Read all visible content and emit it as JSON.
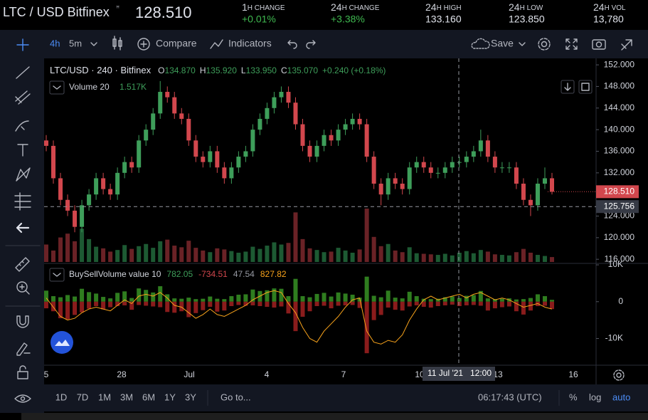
{
  "header": {
    "pair": "LTC / USD Bitfinex",
    "price": "128.510",
    "stats": [
      {
        "num": "1",
        "label": "H CHANGE",
        "value": "+0.01%"
      },
      {
        "num": "24",
        "label": "H CHANGE",
        "value": "+3.38%"
      },
      {
        "num": "24",
        "label": "H HIGH",
        "value": "133.160"
      },
      {
        "num": "24",
        "label": "H LOW",
        "value": "123.850"
      },
      {
        "num": "24",
        "label": "H VOL",
        "value": "13,780"
      }
    ]
  },
  "toolbar": {
    "interval": "4h",
    "interval2": "5m",
    "compare": "Compare",
    "indicators": "Indicators",
    "save": "Save"
  },
  "chart_data": {
    "type": "candlestick",
    "legend": {
      "symbol": "LTC/USD · 240 · Bitfinex",
      "ohlc": [
        {
          "key": "O",
          "value": "134.870"
        },
        {
          "key": "H",
          "value": "135.920"
        },
        {
          "key": "L",
          "value": "133.950"
        },
        {
          "key": "C",
          "value": "135.070"
        }
      ],
      "change": "+0.240 (+0.18%)"
    },
    "up_color": "#3e9e5a",
    "down_color": "#d2474d",
    "candles": [
      [
        138,
        139,
        136,
        137
      ],
      [
        137,
        138,
        130,
        131
      ],
      [
        131,
        132,
        126,
        127
      ],
      [
        127,
        128,
        124,
        125
      ],
      [
        125,
        126,
        121,
        122
      ],
      [
        122,
        127,
        121,
        126
      ],
      [
        126,
        129,
        125,
        128
      ],
      [
        128,
        132,
        127,
        131
      ],
      [
        131,
        132,
        128,
        129
      ],
      [
        129,
        130,
        127,
        128
      ],
      [
        128,
        133,
        127,
        132
      ],
      [
        132,
        135,
        131,
        134
      ],
      [
        134,
        135,
        132,
        133
      ],
      [
        133,
        139,
        132,
        138
      ],
      [
        138,
        141,
        137,
        140
      ],
      [
        140,
        144,
        139,
        143
      ],
      [
        143,
        149,
        142,
        147
      ],
      [
        147,
        148,
        145,
        146
      ],
      [
        146,
        147,
        142,
        143
      ],
      [
        143,
        144,
        141,
        142
      ],
      [
        142,
        143,
        137,
        138
      ],
      [
        138,
        139,
        134,
        135
      ],
      [
        135,
        136,
        133,
        134
      ],
      [
        134,
        137,
        133,
        136
      ],
      [
        136,
        137,
        132,
        133
      ],
      [
        133,
        134,
        130,
        131
      ],
      [
        131,
        134,
        130,
        133
      ],
      [
        133,
        136,
        132,
        135
      ],
      [
        135,
        137,
        134,
        136
      ],
      [
        136,
        141,
        135,
        140
      ],
      [
        140,
        143,
        139,
        142
      ],
      [
        142,
        145,
        141,
        144
      ],
      [
        144,
        147,
        143,
        146
      ],
      [
        146,
        148,
        145,
        147
      ],
      [
        147,
        148,
        144,
        145
      ],
      [
        145,
        146,
        140,
        141
      ],
      [
        141,
        142,
        136,
        137
      ],
      [
        137,
        138,
        134,
        135
      ],
      [
        135,
        138,
        134,
        137
      ],
      [
        137,
        140,
        136,
        139
      ],
      [
        139,
        140,
        137,
        138
      ],
      [
        138,
        141,
        137,
        140
      ],
      [
        140,
        142,
        139,
        141
      ],
      [
        141,
        143,
        140,
        142
      ],
      [
        142,
        143,
        140,
        141
      ],
      [
        141,
        142,
        134,
        135
      ],
      [
        135,
        136,
        129,
        130
      ],
      [
        130,
        131,
        126,
        128
      ],
      [
        128,
        132,
        127,
        131
      ],
      [
        131,
        132,
        129,
        130
      ],
      [
        130,
        131,
        128,
        129
      ],
      [
        129,
        134,
        128,
        133
      ],
      [
        133,
        135,
        132,
        134
      ],
      [
        134,
        135,
        132,
        133
      ],
      [
        133,
        134,
        131,
        132
      ],
      [
        132,
        133,
        131,
        132
      ],
      [
        132,
        134,
        131,
        133
      ],
      [
        133,
        135,
        132,
        134
      ],
      [
        134,
        135,
        133,
        134
      ],
      [
        134,
        136,
        133,
        135
      ],
      [
        135,
        137,
        134,
        136
      ],
      [
        136,
        140,
        135,
        138
      ],
      [
        138,
        139,
        134,
        135
      ],
      [
        135,
        136,
        132,
        133
      ],
      [
        133,
        134,
        132,
        133
      ],
      [
        133,
        134,
        132,
        133
      ],
      [
        133,
        134,
        129,
        130
      ],
      [
        130,
        131,
        126,
        127
      ],
      [
        127,
        128,
        124,
        126
      ],
      [
        126,
        131,
        125,
        130
      ],
      [
        130,
        133,
        129,
        131
      ],
      [
        131,
        132,
        128,
        128.51
      ]
    ],
    "ylim": [
      115.5,
      153.2
    ],
    "yticks": [
      {
        "value": 116,
        "label": "116.000"
      },
      {
        "value": 120,
        "label": "120.000"
      },
      {
        "value": 124,
        "label": "124.000"
      },
      {
        "value": 128,
        "label": "128.000"
      },
      {
        "value": 132,
        "label": "132.000"
      },
      {
        "value": 136,
        "label": "136.000"
      },
      {
        "value": 140,
        "label": "140.000"
      },
      {
        "value": 144,
        "label": "144.000"
      },
      {
        "value": 148,
        "label": "148.000"
      },
      {
        "value": 152,
        "label": "152.000"
      }
    ],
    "last_price": {
      "value": 128.51,
      "label": "128.510"
    },
    "crosshair": {
      "value": 125.756,
      "label": "125.756",
      "date": "11 Jul '21",
      "time": "12:00"
    },
    "xticks": [
      "5",
      "28",
      "Jul",
      "4",
      "7",
      "10",
      "13",
      "16"
    ],
    "volume": {
      "name": "Volume 20",
      "value": "1.517K",
      "values": [
        3200,
        2100,
        4500,
        5200,
        3800,
        6100,
        4200,
        2800,
        2500,
        1900,
        2200,
        3100,
        2400,
        2900,
        3300,
        2600,
        3800,
        4100,
        3000,
        2700,
        3900,
        2600,
        2100,
        1800,
        2500,
        2300,
        2000,
        1700,
        1900,
        2800,
        2400,
        3000,
        3600,
        3200,
        3500,
        9100,
        4200,
        2500,
        2200,
        1800,
        1900,
        2600,
        2100,
        1700,
        2300,
        9800,
        4600,
        2900,
        3300,
        2100,
        1800,
        2700,
        1600,
        1500,
        1400,
        1300,
        1500,
        1200,
        1700,
        2000,
        1600,
        2200,
        1900,
        1400,
        1300,
        1200,
        1800,
        2400,
        1700,
        1300,
        1100,
        900
      ]
    },
    "indicator": {
      "name": "BuySellVolume value 10",
      "readings": [
        {
          "value": "782.05",
          "color": "#3e9e5a"
        },
        {
          "value": "-734.51",
          "color": "#d2474d"
        },
        {
          "value": "47.54",
          "color": "#9598a1"
        },
        {
          "value": "827.82",
          "color": "#f7a21b"
        }
      ],
      "ylim": [
        -17250,
        10400
      ],
      "yticks": [
        {
          "value": 10000,
          "label": "10K"
        },
        0,
        {
          "value": -10000,
          "label": "-10K"
        }
      ],
      "buy": [
        3000,
        1500,
        1200,
        1800,
        1400,
        3500,
        2600,
        2200,
        1300,
        900,
        2400,
        2800,
        1000,
        3600,
        3200,
        2500,
        4200,
        2000,
        900,
        800,
        1100,
        700,
        800,
        1400,
        800,
        700,
        1500,
        1900,
        2000,
        3300,
        2900,
        3100,
        3600,
        3500,
        1500,
        6200,
        1500,
        1200,
        2100,
        2400,
        1400,
        2500,
        2200,
        1900,
        1100,
        6800,
        1600,
        1200,
        3000,
        1100,
        900,
        2700,
        1500,
        800,
        700,
        800,
        1200,
        1400,
        1000,
        1600,
        1800,
        2900,
        900,
        700,
        800,
        900,
        600,
        700,
        1000,
        2000,
        1500,
        500
      ],
      "sell": [
        -1800,
        -2600,
        -4500,
        -4800,
        -3600,
        -2900,
        -1900,
        -1200,
        -2100,
        -1500,
        -1200,
        -1000,
        -2200,
        -900,
        -1100,
        -1300,
        -1500,
        -2800,
        -3000,
        -2600,
        -4200,
        -3100,
        -2300,
        -1400,
        -2700,
        -2400,
        -1200,
        -900,
        -1100,
        -1000,
        -1200,
        -1400,
        -1600,
        -1300,
        -3200,
        -8000,
        -4100,
        -2600,
        -1200,
        -1100,
        -1800,
        -1100,
        -1000,
        -900,
        -1700,
        -14000,
        -5000,
        -3600,
        -1600,
        -2200,
        -2400,
        -1300,
        -1000,
        -1400,
        -1600,
        -1200,
        -1000,
        -800,
        -1200,
        -1000,
        -900,
        -1100,
        -2400,
        -1800,
        -1500,
        -1300,
        -2600,
        -3500,
        -2400,
        -1200,
        -1100,
        -2000
      ],
      "line": [
        1000,
        -1500,
        -4000,
        -5000,
        -4500,
        -3000,
        -2000,
        -1500,
        -2000,
        -2500,
        -1000,
        500,
        -500,
        1500,
        2000,
        1500,
        2500,
        1000,
        -1000,
        -1500,
        -3000,
        -4500,
        -3500,
        -2000,
        -3500,
        -4000,
        -3000,
        -2000,
        -1000,
        500,
        1500,
        2500,
        3000,
        2500,
        -500,
        -3000,
        -7000,
        -10000,
        -11000,
        -8000,
        -6000,
        -4000,
        -1500,
        500,
        1000,
        -8000,
        -11000,
        -11500,
        -10500,
        -11000,
        -9000,
        -5000,
        -2000,
        500,
        1500,
        500,
        1000,
        1500,
        2000,
        1000,
        2000,
        2500,
        1500,
        500,
        1000,
        500,
        -500,
        -1500,
        -1000,
        -500,
        -1500,
        -2000
      ]
    }
  },
  "bottom_bar": {
    "ranges": [
      "1D",
      "7D",
      "1M",
      "3M",
      "6M",
      "1Y",
      "3Y"
    ],
    "goto": "Go to...",
    "clock": "06:17:43 (UTC)",
    "percent": "%",
    "log": "log",
    "auto": "auto"
  }
}
